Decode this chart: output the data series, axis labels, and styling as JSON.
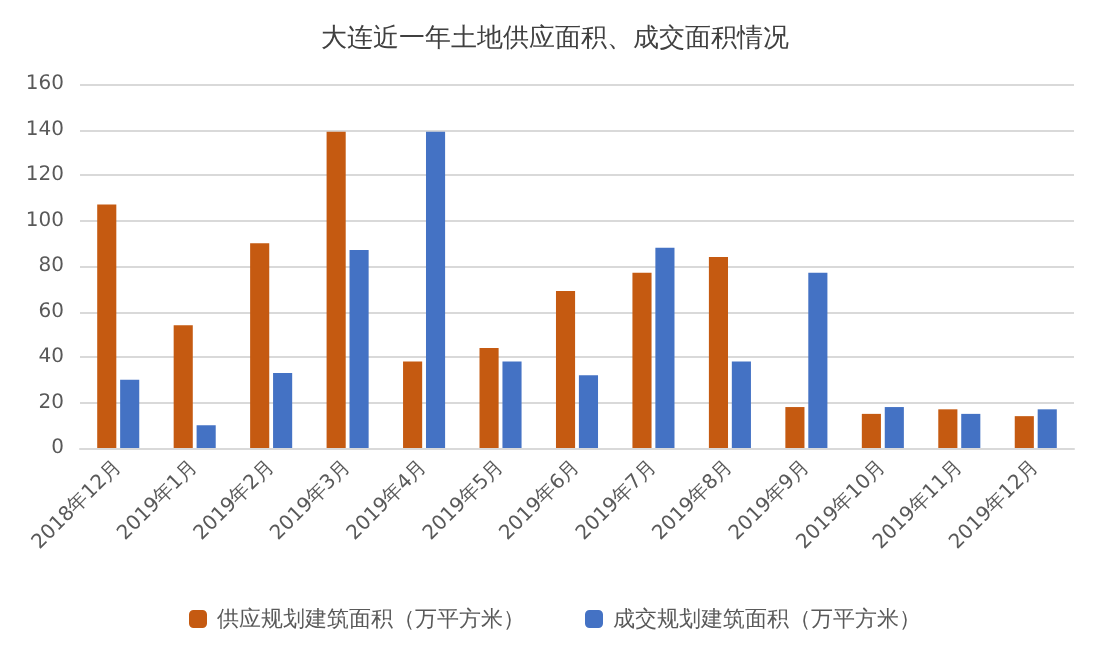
{
  "chart_data": {
    "type": "bar",
    "title": "大连近一年土地供应面积、成交面积情况",
    "categories": [
      "2018年12月",
      "2019年1月",
      "2019年2月",
      "2019年3月",
      "2019年4月",
      "2019年5月",
      "2019年6月",
      "2019年7月",
      "2019年8月",
      "2019年9月",
      "2019年10月",
      "2019年11月",
      "2019年12月"
    ],
    "series": [
      {
        "name": "供应规划建筑面积（万平方米）",
        "color": "#c55a11",
        "values": [
          107,
          54,
          90,
          139,
          38,
          44,
          69,
          77,
          84,
          18,
          15,
          17,
          14
        ]
      },
      {
        "name": "成交规划建筑面积（万平方米）",
        "color": "#4472c4",
        "values": [
          30,
          10,
          33,
          87,
          139,
          38,
          32,
          88,
          38,
          77,
          18,
          15,
          17
        ]
      }
    ],
    "ylim": [
      0,
      160
    ],
    "yticks": [
      0,
      20,
      40,
      60,
      80,
      100,
      120,
      140,
      160
    ],
    "grid": "y",
    "legend": "bottom"
  }
}
